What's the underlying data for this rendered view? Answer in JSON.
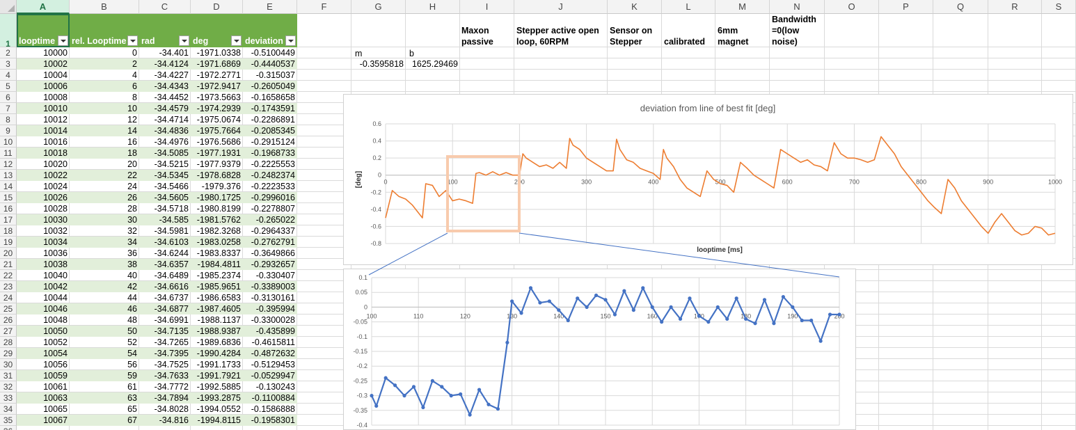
{
  "columns": [
    "A",
    "B",
    "C",
    "D",
    "E",
    "F",
    "G",
    "H",
    "I",
    "J",
    "K",
    "L",
    "M",
    "N",
    "O",
    "P",
    "Q",
    "R",
    "S"
  ],
  "rows": [
    "1",
    "2",
    "3",
    "4",
    "5",
    "6",
    "7",
    "8",
    "9",
    "10",
    "11",
    "12",
    "13",
    "14",
    "15",
    "16",
    "17",
    "18",
    "19",
    "20",
    "21",
    "22",
    "23",
    "24",
    "25",
    "26",
    "27",
    "28",
    "29",
    "30",
    "31",
    "32",
    "33",
    "34",
    "35",
    "36"
  ],
  "table": {
    "headers": [
      "looptime",
      "rel. Looptime",
      "rad",
      "deg",
      "deviation"
    ],
    "rows": [
      [
        "10000",
        "0",
        "-34.401",
        "-1971.0338",
        "-0.5100449"
      ],
      [
        "10002",
        "2",
        "-34.4124",
        "-1971.6869",
        "-0.4440537"
      ],
      [
        "10004",
        "4",
        "-34.4227",
        "-1972.2771",
        "-0.315037"
      ],
      [
        "10006",
        "6",
        "-34.4343",
        "-1972.9417",
        "-0.2605049"
      ],
      [
        "10008",
        "8",
        "-34.4452",
        "-1973.5663",
        "-0.1658658"
      ],
      [
        "10010",
        "10",
        "-34.4579",
        "-1974.2939",
        "-0.1743591"
      ],
      [
        "10012",
        "12",
        "-34.4714",
        "-1975.0674",
        "-0.2286891"
      ],
      [
        "10014",
        "14",
        "-34.4836",
        "-1975.7664",
        "-0.2085345"
      ],
      [
        "10016",
        "16",
        "-34.4976",
        "-1976.5686",
        "-0.2915124"
      ],
      [
        "10018",
        "18",
        "-34.5085",
        "-1977.1931",
        "-0.1968733"
      ],
      [
        "10020",
        "20",
        "-34.5215",
        "-1977.9379",
        "-0.2225553"
      ],
      [
        "10022",
        "22",
        "-34.5345",
        "-1978.6828",
        "-0.2482374"
      ],
      [
        "10024",
        "24",
        "-34.5466",
        "-1979.376",
        "-0.2223533"
      ],
      [
        "10026",
        "26",
        "-34.5605",
        "-1980.1725",
        "-0.2996016"
      ],
      [
        "10028",
        "28",
        "-34.5718",
        "-1980.8199",
        "-0.2278807"
      ],
      [
        "10030",
        "30",
        "-34.585",
        "-1981.5762",
        "-0.265022"
      ],
      [
        "10032",
        "32",
        "-34.5981",
        "-1982.3268",
        "-0.2964337"
      ],
      [
        "10034",
        "34",
        "-34.6103",
        "-1983.0258",
        "-0.2762791"
      ],
      [
        "10036",
        "36",
        "-34.6244",
        "-1983.8337",
        "-0.3649866"
      ],
      [
        "10038",
        "38",
        "-34.6357",
        "-1984.4811",
        "-0.2932657"
      ],
      [
        "10040",
        "40",
        "-34.6489",
        "-1985.2374",
        "-0.330407"
      ],
      [
        "10042",
        "42",
        "-34.6616",
        "-1985.9651",
        "-0.3389003"
      ],
      [
        "10044",
        "44",
        "-34.6737",
        "-1986.6583",
        "-0.3130161"
      ],
      [
        "10046",
        "46",
        "-34.6877",
        "-1987.4605",
        "-0.395994"
      ],
      [
        "10048",
        "48",
        "-34.6991",
        "-1988.1137",
        "-0.3300028"
      ],
      [
        "10050",
        "50",
        "-34.7135",
        "-1988.9387",
        "-0.435899"
      ],
      [
        "10052",
        "52",
        "-34.7265",
        "-1989.6836",
        "-0.4615811"
      ],
      [
        "10054",
        "54",
        "-34.7395",
        "-1990.4284",
        "-0.4872632"
      ],
      [
        "10056",
        "56",
        "-34.7525",
        "-1991.1733",
        "-0.5129453"
      ],
      [
        "10059",
        "59",
        "-34.7633",
        "-1991.7921",
        "-0.0529947"
      ],
      [
        "10061",
        "61",
        "-34.7772",
        "-1992.5885",
        "-0.130243"
      ],
      [
        "10063",
        "63",
        "-34.7894",
        "-1993.2875",
        "-0.1100884"
      ],
      [
        "10065",
        "65",
        "-34.8028",
        "-1994.0552",
        "-0.1586888"
      ],
      [
        "10067",
        "67",
        "-34.816",
        "-1994.8115",
        "-0.1958301"
      ]
    ]
  },
  "fit": {
    "m_label": "m",
    "b_label": "b",
    "m_value": "-0.3595818",
    "b_value": "1625.29469"
  },
  "notes": {
    "I": "Maxon passive",
    "J": "Stepper active open loop, 60RPM",
    "K": "Sensor on Stepper",
    "L": "calibrated",
    "M": "6mm magnet",
    "N": "Bandwidth =0(low noise)"
  },
  "colors": {
    "table_header": "#70ad47",
    "band": "#e2efda",
    "main_line": "#ed7d31",
    "zoom_line": "#4472c4",
    "zoom_box": "#f8cbad"
  },
  "chart_data": [
    {
      "type": "line",
      "title": "deviation from line of best fit [deg]",
      "xlabel": "looptime [ms]",
      "ylabel": "[deg]",
      "xlim": [
        0,
        1000
      ],
      "ylim": [
        -0.8,
        0.6
      ],
      "x_ticks": [
        "0",
        "100",
        "200",
        "300",
        "400",
        "500",
        "600",
        "700",
        "800",
        "900",
        "1000"
      ],
      "y_ticks": [
        "0.6",
        "0.4",
        "0.2",
        "0",
        "-0.2",
        "-0.4",
        "-0.6",
        "-0.8"
      ],
      "grid": true,
      "series": [
        {
          "x": [
            0,
            10,
            20,
            30,
            40,
            50,
            55,
            60,
            70,
            80,
            90,
            100,
            110,
            120,
            130,
            135,
            140,
            150,
            160,
            170,
            180,
            190,
            200,
            205,
            210,
            220,
            230,
            240,
            250,
            260,
            270,
            275,
            280,
            290,
            300,
            310,
            320,
            330,
            340,
            345,
            350,
            360,
            370,
            380,
            390,
            400,
            410,
            415,
            420,
            430,
            440,
            450,
            460,
            470,
            480,
            490,
            500,
            510,
            520,
            530,
            540,
            550,
            560,
            570,
            580,
            590,
            600,
            610,
            620,
            630,
            640,
            650,
            660,
            670,
            680,
            690,
            700,
            710,
            720,
            730,
            740,
            750,
            760,
            770,
            780,
            790,
            800,
            810,
            820,
            830,
            840,
            850,
            860,
            870,
            880,
            890,
            900,
            910,
            920,
            930,
            940,
            950,
            960,
            970,
            980,
            990,
            1000
          ],
          "y": [
            -0.5,
            -0.18,
            -0.25,
            -0.28,
            -0.35,
            -0.45,
            -0.5,
            -0.1,
            -0.12,
            -0.25,
            -0.18,
            -0.3,
            -0.28,
            -0.3,
            -0.33,
            0.02,
            0.03,
            0.0,
            0.04,
            0.0,
            0.03,
            0.0,
            0.0,
            0.25,
            0.2,
            0.15,
            0.1,
            0.12,
            0.08,
            0.15,
            0.08,
            0.43,
            0.35,
            0.3,
            0.2,
            0.15,
            0.1,
            0.05,
            0.05,
            0.42,
            0.3,
            0.18,
            0.15,
            0.08,
            0.05,
            0.02,
            -0.05,
            0.3,
            0.2,
            0.1,
            -0.05,
            -0.15,
            -0.2,
            -0.25,
            0.05,
            -0.05,
            -0.1,
            -0.12,
            -0.2,
            0.15,
            0.08,
            0.0,
            -0.05,
            -0.1,
            -0.15,
            0.3,
            0.25,
            0.2,
            0.15,
            0.18,
            0.12,
            0.1,
            0.05,
            0.38,
            0.25,
            0.2,
            0.2,
            0.18,
            0.15,
            0.18,
            0.45,
            0.35,
            0.25,
            0.1,
            0.0,
            -0.1,
            -0.2,
            -0.3,
            -0.38,
            -0.45,
            -0.05,
            -0.15,
            -0.3,
            -0.4,
            -0.5,
            -0.6,
            -0.68,
            -0.55,
            -0.45,
            -0.55,
            -0.65,
            -0.7,
            -0.68,
            -0.6,
            -0.62,
            -0.7,
            -0.68
          ],
          "color": "#ed7d31"
        }
      ]
    },
    {
      "type": "line",
      "title": "",
      "xlim": [
        100,
        200
      ],
      "ylim": [
        -0.4,
        0.1
      ],
      "x_ticks": [
        "100",
        "110",
        "120",
        "130",
        "140",
        "150",
        "160",
        "170",
        "180",
        "190",
        "200"
      ],
      "y_ticks": [
        "0.1",
        "0.05",
        "0",
        "-0.05",
        "-0.1",
        "-0.15",
        "-0.2",
        "-0.25",
        "-0.3",
        "-0.35",
        "-0.4"
      ],
      "grid": true,
      "series": [
        {
          "x": [
            100,
            101,
            103,
            105,
            107,
            109,
            111,
            113,
            115,
            117,
            119,
            121,
            123,
            125,
            127,
            129,
            130,
            132,
            134,
            136,
            138,
            140,
            142,
            144,
            146,
            148,
            150,
            152,
            154,
            156,
            158,
            160,
            162,
            164,
            166,
            168,
            170,
            172,
            174,
            176,
            178,
            180,
            182,
            184,
            186,
            188,
            190,
            192,
            194,
            196,
            198,
            200
          ],
          "y": [
            -0.3,
            -0.335,
            -0.24,
            -0.265,
            -0.3,
            -0.27,
            -0.34,
            -0.25,
            -0.27,
            -0.3,
            -0.295,
            -0.365,
            -0.28,
            -0.33,
            -0.345,
            -0.12,
            0.02,
            -0.02,
            0.065,
            0.015,
            0.02,
            -0.01,
            -0.045,
            0.03,
            0.0,
            0.04,
            0.025,
            -0.025,
            0.055,
            -0.01,
            0.065,
            0.0,
            -0.05,
            0.0,
            -0.04,
            0.03,
            -0.03,
            -0.05,
            0.0,
            -0.04,
            0.03,
            -0.04,
            -0.055,
            0.025,
            -0.055,
            0.035,
            0.0,
            -0.045,
            -0.045,
            -0.115,
            -0.025,
            -0.025
          ],
          "color": "#4472c4"
        }
      ]
    }
  ]
}
